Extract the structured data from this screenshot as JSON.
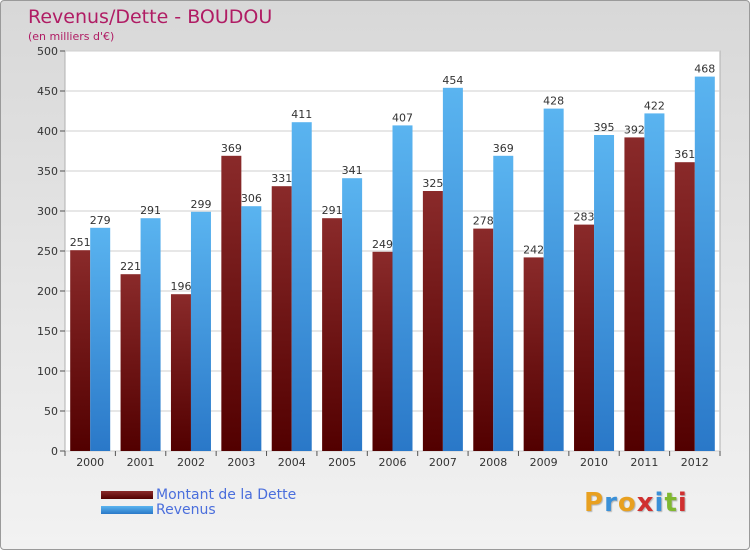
{
  "title": "Revenus/Dette - BOUDOU",
  "subtitle": "(en milliers d'€)",
  "logo": "Proxiti",
  "colors": {
    "title": "#b01c64",
    "dette": "#7a1a1a",
    "revenus": "#3aa0e8",
    "legend_text": "#4a6edc",
    "logo_letters": [
      "#e8a020",
      "#3a90d8",
      "#e8a020",
      "#d03030",
      "#3a90d8",
      "#80b830",
      "#d03030"
    ]
  },
  "chart_data": {
    "type": "bar",
    "title": "Revenus/Dette - BOUDOU",
    "subtitle": "(en milliers d'€)",
    "categories": [
      "2000",
      "2001",
      "2002",
      "2003",
      "2004",
      "2005",
      "2006",
      "2007",
      "2008",
      "2009",
      "2010",
      "2011",
      "2012"
    ],
    "series": [
      {
        "name": "Montant de la Dette",
        "values": [
          251,
          221,
          196,
          369,
          331,
          291,
          249,
          325,
          278,
          242,
          283,
          392,
          361
        ]
      },
      {
        "name": "Revenus",
        "values": [
          279,
          291,
          299,
          306,
          411,
          341,
          407,
          454,
          369,
          428,
          395,
          422,
          468
        ]
      }
    ],
    "ylim": [
      0,
      500
    ],
    "yticks": [
      0,
      50,
      100,
      150,
      200,
      250,
      300,
      350,
      400,
      450,
      500
    ],
    "grid": true,
    "legend_position": "bottom-left"
  }
}
